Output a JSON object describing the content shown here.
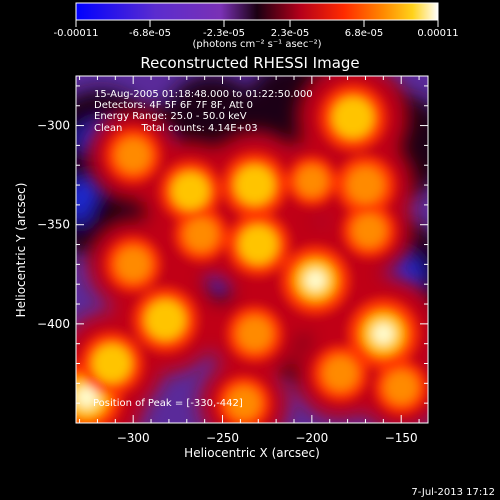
{
  "colorbar": {
    "tick_labels": [
      "-0.00011",
      "-6.8e-05",
      "-2.3e-05",
      "2.3e-05",
      "6.8e-05",
      "0.00011"
    ],
    "units": "(photons cm⁻² s⁻¹ asec⁻²)",
    "colors": [
      "#0000ff",
      "#5b2ccf",
      "#7a31b5",
      "#1a0012",
      "#b5001a",
      "#ff2a00",
      "#ff8a00",
      "#ffd21a",
      "#ffffff"
    ]
  },
  "plot": {
    "title": "Reconstructed RHESSI Image",
    "xlabel": "Heliocentric X (arcsec)",
    "ylabel": "Heliocentric Y (arcsec)",
    "x_ticks": [
      "−300",
      "−250",
      "−200",
      "−150"
    ],
    "y_ticks": [
      "−300",
      "−350",
      "−400"
    ],
    "annotations": [
      "15-Aug-2005 01:18:48.000 to 01:22:50.000",
      "Detectors: 4F 5F 6F 7F 8F, Att 0",
      "Energy Range: 25.0 - 50.0 keV",
      "Clean      Total counts: 4.14E+03"
    ],
    "peak_label": "Position of Peak = [-330,-442]",
    "timestamp": "7-Jul-2013 17:12"
  },
  "image_features": {
    "bright": [
      [
        -326,
        -437,
        1.0
      ],
      [
        -312,
        -420,
        0.8
      ],
      [
        -282,
        -398,
        0.85
      ],
      [
        -300,
        -370,
        0.6
      ],
      [
        -300,
        -315,
        0.6
      ],
      [
        -268,
        -333,
        0.75
      ],
      [
        -262,
        -355,
        0.55
      ],
      [
        -232,
        -330,
        0.85
      ],
      [
        -230,
        -360,
        0.8
      ],
      [
        -232,
        -405,
        0.6
      ],
      [
        -238,
        -440,
        0.55
      ],
      [
        -200,
        -328,
        0.45
      ],
      [
        -198,
        -378,
        0.95
      ],
      [
        -184,
        -425,
        0.6
      ],
      [
        -177,
        -296,
        0.9
      ],
      [
        -170,
        -330,
        0.7
      ],
      [
        -160,
        -405,
        1.0
      ],
      [
        -150,
        -432,
        0.55
      ],
      [
        -168,
        -353,
        0.55
      ]
    ],
    "dim": [
      [
        -318,
        -312,
        0.9
      ],
      [
        -324,
        -338,
        0.7
      ],
      [
        -280,
        -318,
        0.8
      ],
      [
        -277,
        -343,
        0.95
      ],
      [
        -298,
        -350,
        0.6
      ],
      [
        -252,
        -372,
        0.75
      ],
      [
        -210,
        -350,
        0.6
      ],
      [
        -210,
        -292,
        0.55
      ],
      [
        -205,
        -405,
        0.55
      ],
      [
        -184,
        -345,
        0.7
      ],
      [
        -168,
        -308,
        0.8
      ],
      [
        -150,
        -310,
        0.6
      ],
      [
        -152,
        -376,
        0.75
      ],
      [
        -256,
        -298,
        0.5
      ]
    ]
  }
}
